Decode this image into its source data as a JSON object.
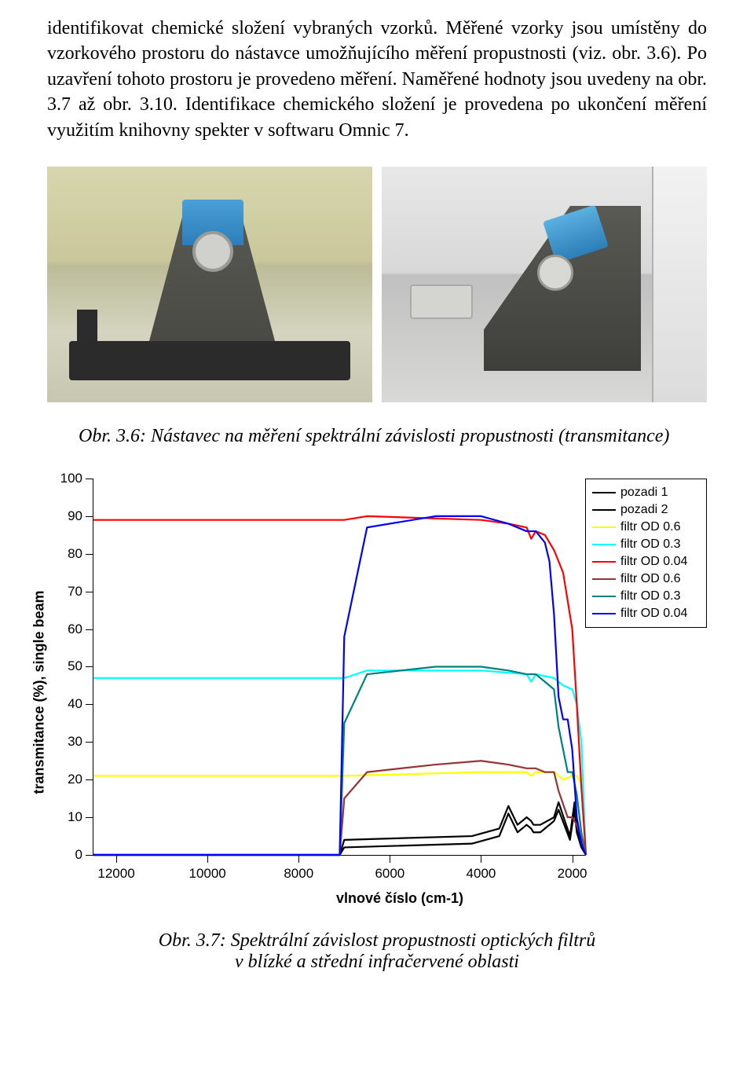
{
  "paragraph": "identifikovat chemické složení vybraných vzorků. Měřené vzorky jsou umístěny do vzorkového prostoru do nástavce umožňujícího měření propustnosti (viz. obr. 3.6). Po uzavření tohoto prostoru je provedeno měření. Naměřené hodnoty jsou uvedeny na obr. 3.7 až obr. 3.10. Identifikace chemického složení je provedena po ukončení měření využitím knihovny spekter v softwaru Omnic 7.",
  "caption_36": "Obr. 3.6: Nástavec na měření spektrální závislosti propustnosti (transmitance)",
  "caption_37_l1": "Obr. 3.7: Spektrální závislost propustnosti optických filtrů",
  "caption_37_l2": "v blízké a střední infračervené oblasti",
  "chart": {
    "type": "line",
    "ylabel": "transmitance (%), single beam",
    "xlabel": "vlnové číslo (cm-1)",
    "background_color": "#ffffff",
    "axis_color": "#000000",
    "xlim": [
      12500,
      1700
    ],
    "ylim": [
      0,
      100
    ],
    "yticks": [
      0,
      10,
      20,
      30,
      40,
      50,
      60,
      70,
      80,
      90,
      100
    ],
    "xticks": [
      12000,
      10000,
      8000,
      6000,
      4000,
      2000
    ],
    "tick_fontsize": 17,
    "label_fontsize": 18,
    "label_fontweight": "bold",
    "line_width": 2.2,
    "series": [
      {
        "name": "pozadi 1",
        "color": "#000000",
        "x": [
          12500,
          7100,
          7000,
          4200,
          3600,
          3400,
          3200,
          3000,
          2900,
          2850,
          2700,
          2400,
          2300,
          2050,
          1950,
          1900,
          1800,
          1700
        ],
        "y": [
          0,
          0,
          2,
          3,
          5,
          11,
          6,
          8,
          7,
          6,
          6,
          9,
          12,
          4,
          12,
          6,
          2,
          0
        ]
      },
      {
        "name": "pozadi 2",
        "color": "#000000",
        "x": [
          12500,
          7100,
          7000,
          4200,
          3600,
          3400,
          3200,
          3000,
          2900,
          2850,
          2700,
          2400,
          2300,
          2050,
          1950,
          1900,
          1800,
          1700
        ],
        "y": [
          0,
          0,
          4,
          5,
          7,
          13,
          8,
          10,
          9,
          8,
          8,
          10,
          14,
          5,
          14,
          7,
          3,
          0
        ]
      },
      {
        "name": "filtr OD 0.6",
        "color": "#ffff00",
        "x": [
          12500,
          12000,
          7000,
          4000,
          3000,
          2900,
          2800,
          2400,
          2200,
          2000,
          1900,
          1800,
          1700
        ],
        "y": [
          21,
          21,
          21,
          22,
          22,
          21,
          22,
          22,
          20,
          21,
          21,
          19,
          0
        ]
      },
      {
        "name": "filtr OD 0.3",
        "color": "#00ffff",
        "x": [
          12500,
          12000,
          7000,
          6500,
          4000,
          3000,
          2900,
          2800,
          2400,
          2200,
          2000,
          1900,
          1800,
          1700
        ],
        "y": [
          47,
          47,
          47,
          49,
          49,
          48,
          46,
          48,
          47,
          45,
          44,
          40,
          30,
          0
        ]
      },
      {
        "name": "filtr OD 0.04",
        "color": "#ff0000",
        "x": [
          12500,
          12000,
          7000,
          6500,
          4000,
          3400,
          3000,
          2900,
          2800,
          2600,
          2400,
          2200,
          2000,
          1900,
          1800,
          1700
        ],
        "y": [
          89,
          89,
          89,
          90,
          89,
          88,
          87,
          84,
          86,
          85,
          81,
          75,
          60,
          40,
          18,
          0
        ]
      },
      {
        "name": "filtr OD 0.6",
        "color": "#993333",
        "x": [
          12500,
          7100,
          7000,
          6500,
          5000,
          4000,
          3400,
          3000,
          2800,
          2600,
          2400,
          2300,
          2100,
          2000,
          1900,
          1800,
          1700
        ],
        "y": [
          0,
          0,
          15,
          22,
          24,
          25,
          24,
          23,
          23,
          22,
          22,
          17,
          10,
          10,
          8,
          4,
          0
        ]
      },
      {
        "name": "filtr OD 0.3",
        "color": "#008080",
        "x": [
          12500,
          7100,
          7000,
          6500,
          5000,
          4000,
          3400,
          3000,
          2800,
          2600,
          2400,
          2300,
          2100,
          2000,
          1900,
          1800,
          1700
        ],
        "y": [
          0,
          0,
          35,
          48,
          50,
          50,
          49,
          48,
          48,
          46,
          44,
          34,
          22,
          22,
          16,
          6,
          0
        ]
      },
      {
        "name": "filtr OD 0.04",
        "color": "#0000ff",
        "x": [
          12500,
          7100,
          7000,
          6500,
          5000,
          4000,
          3400,
          3000,
          2800,
          2600,
          2500,
          2400,
          2300,
          2200,
          2100,
          2000,
          1900,
          1800,
          1700
        ],
        "y": [
          0,
          0,
          58,
          87,
          90,
          90,
          88,
          86,
          86,
          83,
          78,
          64,
          42,
          36,
          36,
          28,
          10,
          3,
          0
        ]
      }
    ],
    "legend": {
      "border_color": "#000000",
      "fontsize": 16
    }
  }
}
